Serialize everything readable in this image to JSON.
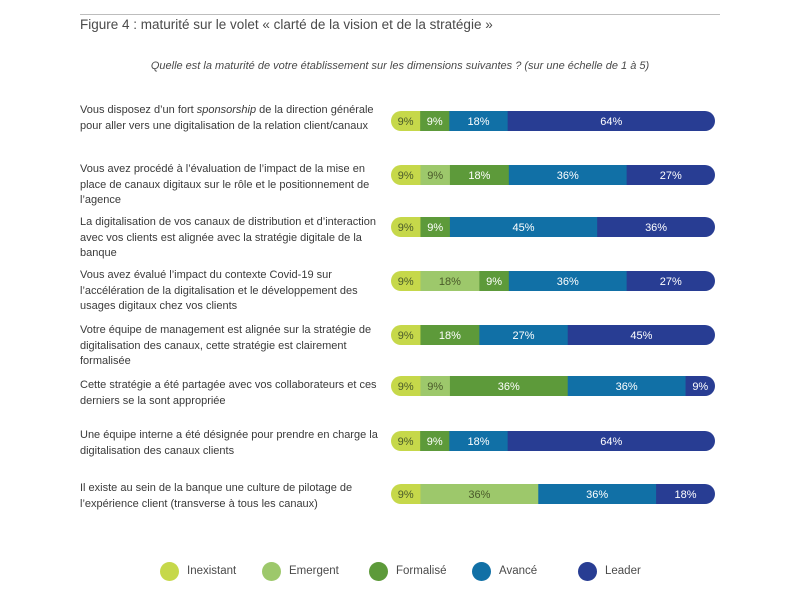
{
  "figure_title": "Figure 4 : maturité sur le volet « clarté de la vision et de la stratégie »",
  "chart_data": {
    "type": "bar",
    "orientation": "horizontal",
    "stacked": true,
    "subtitle": "Quelle est la maturité de votre établissement sur les dimensions suivantes ? (sur une échelle de 1 à 5)",
    "legend_position": "bottom",
    "categories": [
      {
        "before": "Vous disposez d’un fort ",
        "em": "sponsorship",
        "after": " de la direction générale pour aller vers une digitalisation de la relation client/canaux"
      },
      {
        "before": "Vous avez procédé à l’évaluation de l’impact de la mise en place de canaux digitaux sur le rôle et le positionnement de l’agence",
        "em": "",
        "after": ""
      },
      {
        "before": "La digitalisation de vos canaux de distribution et d’interaction avec vos clients est alignée avec la stratégie digitale de la banque",
        "em": "",
        "after": ""
      },
      {
        "before": "Vous avez évalué l’impact du contexte Covid-19 sur l’accélération de la digitalisation et le développement des usages digitaux chez vos clients",
        "em": "",
        "after": ""
      },
      {
        "before": "Votre équipe de management est alignée sur la stratégie de digitalisation des canaux, cette stratégie est clairement formalisée",
        "em": "",
        "after": ""
      },
      {
        "before": "Cette stratégie a été partagée avec vos collaborateurs et ces derniers se la sont appropriée",
        "em": "",
        "after": ""
      },
      {
        "before": "Une équipe interne a été désignée pour prendre en charge la digitalisation des canaux clients",
        "em": "",
        "after": ""
      },
      {
        "before": "Il existe au sein de la banque une culture de pilotage de l’expérience client (transverse à tous les canaux)",
        "em": "",
        "after": ""
      }
    ],
    "series": [
      {
        "name": "Inexistant",
        "color": "#c6d84a",
        "values": [
          9,
          9,
          9,
          9,
          9,
          9,
          9,
          9
        ]
      },
      {
        "name": "Emergent",
        "color": "#9dc86b",
        "values": [
          0,
          9,
          0,
          18,
          0,
          9,
          0,
          36
        ]
      },
      {
        "name": "Formalisé",
        "color": "#5d9a3a",
        "values": [
          9,
          18,
          9,
          9,
          18,
          36,
          9,
          0
        ]
      },
      {
        "name": "Avancé",
        "color": "#1170a6",
        "values": [
          18,
          36,
          45,
          36,
          27,
          36,
          18,
          36
        ]
      },
      {
        "name": "Leader",
        "color": "#283d93",
        "values": [
          64,
          27,
          36,
          27,
          45,
          9,
          64,
          18
        ]
      }
    ],
    "value_suffix": "%"
  }
}
